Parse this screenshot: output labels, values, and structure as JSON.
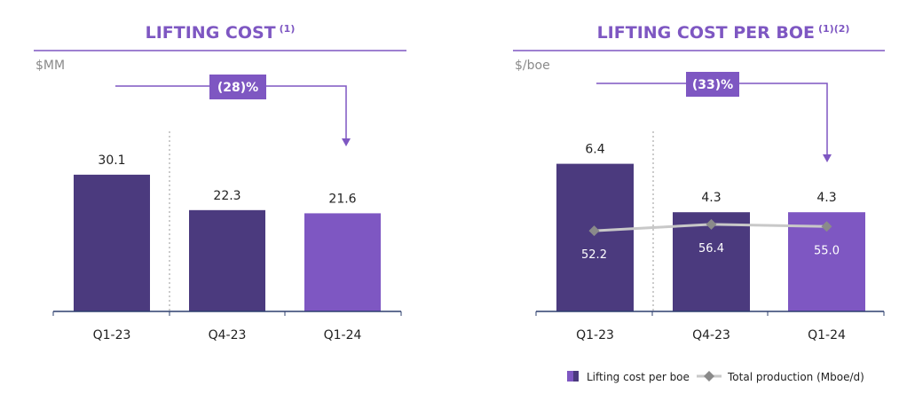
{
  "colors": {
    "dark": "#4B3A7E",
    "light": "#7E57C2",
    "line": "#C8C8C8",
    "marker": "#8A8A8A"
  },
  "chart_data": [
    {
      "type": "bar",
      "title": "LIFTING COST",
      "title_note": "(1)",
      "ylabel": "$MM",
      "categories": [
        "Q1-23",
        "Q4-23",
        "Q1-24"
      ],
      "values": [
        30.1,
        22.3,
        21.6
      ],
      "value_labels": [
        "30.1",
        "22.3",
        "21.6"
      ],
      "ylim": [
        0,
        35
      ],
      "annotation": "(28)%"
    },
    {
      "type": "bar",
      "title": "LIFTING COST PER BOE",
      "title_note": "(1)(2)",
      "ylabel": "$/boe",
      "categories": [
        "Q1-23",
        "Q4-23",
        "Q1-24"
      ],
      "values": [
        6.4,
        4.3,
        4.3
      ],
      "value_labels": [
        "6.4",
        "4.3",
        "4.3"
      ],
      "ylim": [
        0,
        7
      ],
      "annotation": "(33)%",
      "line_series": {
        "name": "Total production (Mboe/d)",
        "values": [
          52.2,
          56.4,
          55.0
        ],
        "labels": [
          "52.2",
          "56.4",
          "55.0"
        ]
      },
      "legend": [
        "Lifting cost per boe",
        "Total production (Mboe/d)"
      ],
      "legend_position": "bottom-right"
    }
  ]
}
